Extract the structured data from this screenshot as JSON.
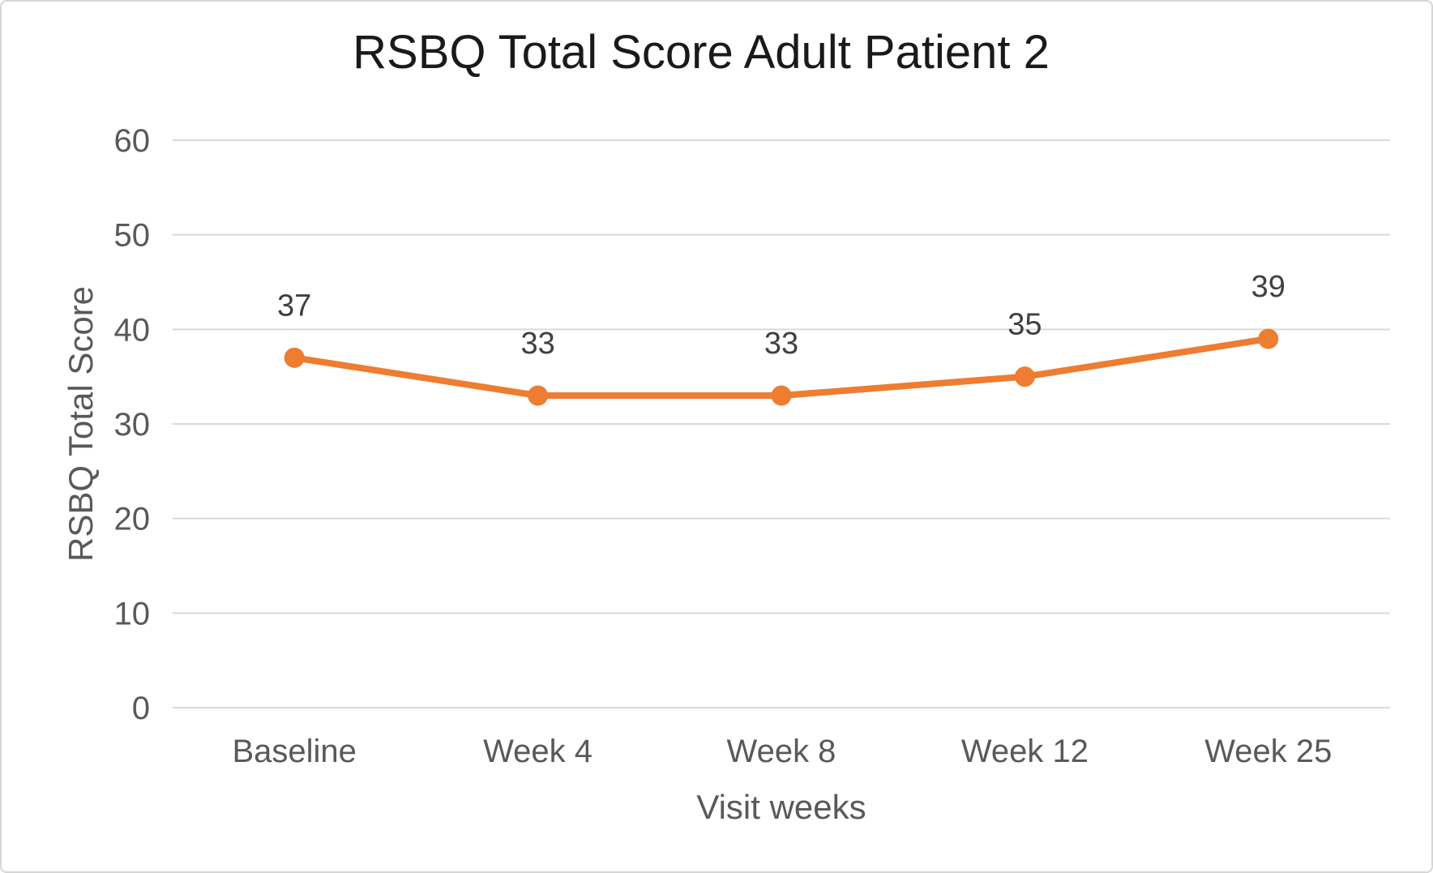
{
  "chart_data": {
    "type": "line",
    "title": "RSBQ Total Score Adult Patient 2",
    "xlabel": "Visit weeks",
    "ylabel": "RSBQ Total Score",
    "categories": [
      "Baseline",
      "Week 4",
      "Week 8",
      "Week 12",
      "Week 25"
    ],
    "series": [
      {
        "name": "RSBQ Total Score",
        "values": [
          37,
          33,
          33,
          35,
          39
        ],
        "color": "#ED7D31"
      }
    ],
    "data_labels": [
      "37",
      "33",
      "33",
      "35",
      "39"
    ],
    "show_data_labels": true,
    "ylim": [
      0,
      60
    ],
    "ytick_step": 10,
    "ytick_labels": [
      "0",
      "10",
      "20",
      "30",
      "40",
      "50",
      "60"
    ],
    "grid": true,
    "legend": false,
    "colors": {
      "series": "#ED7D31",
      "gridline": "#D9D9D9",
      "tick_text": "#595959",
      "axis_title_text": "#595959",
      "title_text": "#1A1A1A",
      "data_label_text": "#404040",
      "background": "#FFFFFF",
      "border": "#D6D6D6"
    }
  }
}
